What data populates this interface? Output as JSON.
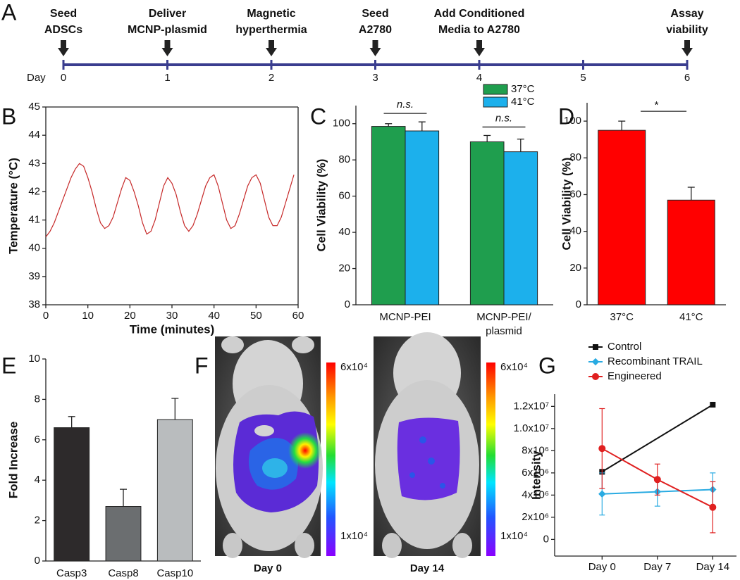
{
  "panel_labels": [
    "A",
    "B",
    "C",
    "D",
    "E",
    "F",
    "G"
  ],
  "timeline": {
    "day_label": "Day",
    "days": [
      0,
      1,
      2,
      3,
      4,
      5,
      6
    ],
    "events": [
      {
        "day": 0,
        "lines": [
          "Seed",
          "ADSCs"
        ]
      },
      {
        "day": 1,
        "lines": [
          "Deliver",
          "MCNP-plasmid"
        ]
      },
      {
        "day": 2,
        "lines": [
          "Magnetic",
          "hyperthermia"
        ]
      },
      {
        "day": 3,
        "lines": [
          "Seed",
          "A2780"
        ]
      },
      {
        "day": 4,
        "lines": [
          "Add Conditioned",
          "Media to A2780"
        ]
      },
      {
        "day": 6,
        "lines": [
          "Assay",
          "viability"
        ]
      }
    ]
  },
  "chart_data": [
    {
      "type": "line",
      "y_label": "Temperature (°C)",
      "x_label": "Time (minutes)",
      "color": "#c62828",
      "x": [
        0,
        1,
        2,
        3,
        4,
        5,
        6,
        7,
        8,
        9,
        10,
        11,
        12,
        13,
        14,
        15,
        16,
        17,
        18,
        19,
        20,
        21,
        22,
        23,
        24,
        25,
        26,
        27,
        28,
        29,
        30,
        31,
        32,
        33,
        34,
        35,
        36,
        37,
        38,
        39,
        40,
        41,
        42,
        43,
        44,
        45,
        46,
        47,
        48,
        49,
        50,
        51,
        52,
        53,
        54,
        55,
        56,
        57,
        58,
        59
      ],
      "values": [
        40.4,
        40.6,
        40.9,
        41.3,
        41.7,
        42.1,
        42.5,
        42.8,
        43.0,
        42.9,
        42.5,
        42.0,
        41.4,
        40.9,
        40.7,
        40.8,
        41.1,
        41.6,
        42.1,
        42.5,
        42.4,
        42.0,
        41.5,
        40.9,
        40.5,
        40.6,
        41.0,
        41.6,
        42.2,
        42.5,
        42.3,
        41.9,
        41.3,
        40.8,
        40.6,
        40.8,
        41.2,
        41.7,
        42.2,
        42.5,
        42.6,
        42.2,
        41.6,
        41.0,
        40.7,
        40.8,
        41.2,
        41.7,
        42.2,
        42.5,
        42.6,
        42.3,
        41.7,
        41.1,
        40.8,
        40.8,
        41.1,
        41.6,
        42.1,
        42.6
      ],
      "xlim": [
        0,
        60
      ],
      "xticks": [
        0,
        10,
        20,
        30,
        40,
        50,
        60
      ],
      "ylim": [
        38,
        45
      ],
      "yticks": [
        38,
        39,
        40,
        41,
        42,
        43,
        44,
        45
      ]
    },
    {
      "type": "bar",
      "y_label": "Cell Viability (%)",
      "categories": [
        "MCNP-PEI",
        "MCNP-PEI/ plasmid"
      ],
      "series": [
        {
          "name": "37°C",
          "color": "#1f9e4e",
          "values": [
            98.5,
            90
          ],
          "errors": [
            1.5,
            3.5
          ]
        },
        {
          "name": "41°C",
          "color": "#1cb0ec",
          "values": [
            96,
            84.5
          ],
          "errors": [
            5,
            7
          ]
        }
      ],
      "annotations": [
        "n.s.",
        "n.s."
      ],
      "legend": "upper-right",
      "ylim": [
        0,
        110
      ],
      "yticks": [
        0,
        20,
        40,
        60,
        80,
        100
      ]
    },
    {
      "type": "bar",
      "y_label": "Cell Viability (%)",
      "categories": [
        "37°C",
        "41°C"
      ],
      "values": [
        95,
        57
      ],
      "errors": [
        5,
        7
      ],
      "color": "#ff0000",
      "annotation": "*",
      "ylim": [
        0,
        110
      ],
      "yticks": [
        0,
        20,
        40,
        60,
        80,
        100
      ]
    },
    {
      "type": "bar",
      "y_label": "Fold Increase",
      "categories": [
        "Casp3",
        "Casp8",
        "Casp10"
      ],
      "values": [
        6.6,
        2.7,
        7.0
      ],
      "errors": [
        0.55,
        0.85,
        1.05
      ],
      "colors": [
        "#2d2a2b",
        "#6b6e70",
        "#b9bcbe"
      ],
      "ylim": [
        0,
        10
      ],
      "yticks": [
        0,
        2,
        4,
        6,
        8,
        10
      ]
    },
    {
      "type": "line",
      "y_label": "Intensity",
      "legend": "upper-left",
      "series": [
        {
          "name": "Control",
          "color": "#111111",
          "marker": "square",
          "x": [
            0,
            14
          ],
          "values": [
            6100000,
            12150000
          ]
        },
        {
          "name": "Recombinant TRAIL",
          "color": "#29abe2",
          "marker": "diamond",
          "x": [
            0,
            7,
            14
          ],
          "values": [
            4100000,
            4300000,
            4500000
          ],
          "errors": [
            1900000,
            1300000,
            1500000
          ]
        },
        {
          "name": "Engineered",
          "color": "#e02020",
          "marker": "circle",
          "x": [
            0,
            7,
            14
          ],
          "values": [
            8200000,
            5400000,
            2900000
          ],
          "errors": [
            3600000,
            1400000,
            2300000
          ]
        }
      ],
      "xlim": [
        -6,
        17
      ],
      "xticks": [
        {
          "value": 0,
          "label": "Day 0"
        },
        {
          "value": 7,
          "label": "Day 7"
        },
        {
          "value": 14,
          "label": "Day 14"
        }
      ],
      "ylim": [
        -1500000,
        13100000
      ],
      "yticks": [
        0,
        {
          "value": 2000000,
          "label": "2x10⁶"
        },
        {
          "value": 4000000,
          "label": "4x10⁶"
        },
        {
          "value": 6000000,
          "label": "6x10⁶"
        },
        {
          "value": 8000000,
          "label": "8x10⁶"
        },
        {
          "value": 10000000,
          "label": "1.0x10⁷"
        },
        {
          "value": 12000000,
          "label": "1.2x10⁷"
        }
      ]
    }
  ],
  "imaging": {
    "captions": [
      "Day 0",
      "Day 14"
    ],
    "colorbar": {
      "max_label": "6x10⁴",
      "min_label": "1x10⁴"
    }
  }
}
